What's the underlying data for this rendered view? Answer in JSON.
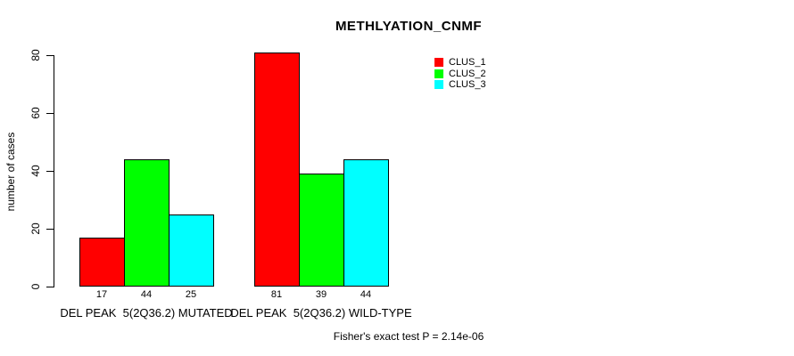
{
  "chart_data": {
    "type": "bar",
    "title": "METHLYATION_CNMF",
    "ylabel": "number of cases",
    "ylim": [
      0,
      80
    ],
    "yticks": [
      0,
      20,
      40,
      60,
      80
    ],
    "grid": false,
    "legend_position": "top-right",
    "categories": [
      "DEL PEAK  5(2Q36.2) MUTATED",
      "DEL PEAK  5(2Q36.2) WILD-TYPE"
    ],
    "series": [
      {
        "name": "CLUS_1",
        "color": "#ff0000",
        "values": [
          17,
          81
        ]
      },
      {
        "name": "CLUS_2",
        "color": "#00ff00",
        "values": [
          44,
          39
        ]
      },
      {
        "name": "CLUS_3",
        "color": "#00ffff",
        "values": [
          25,
          44
        ]
      }
    ],
    "bar_value_labels": [
      [
        17,
        44,
        25
      ],
      [
        81,
        39,
        44
      ]
    ],
    "footnote": "Fisher's exact test P = 2.14e-06"
  },
  "colors": {
    "background": "#ffffff",
    "axis": "#000000",
    "bar_border": "#000000",
    "text": "#000000"
  }
}
